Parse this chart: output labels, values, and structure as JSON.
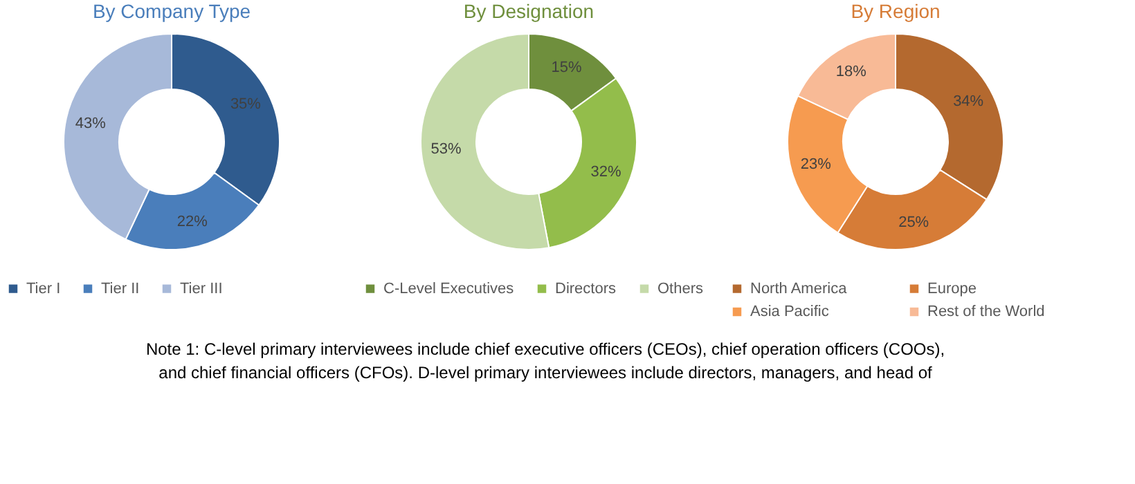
{
  "chart_data": [
    {
      "type": "donut",
      "title": "By Company Type",
      "categories": [
        "Tier I",
        "Tier II",
        "Tier III"
      ],
      "values": [
        35,
        22,
        43
      ],
      "colors": [
        "#2f5b8e",
        "#4a7ebb",
        "#a7b9d9"
      ],
      "value_labels": [
        "35%",
        "22%",
        "43%"
      ],
      "legend": "bottom",
      "annotations": [
        "Note 1: C-level primary interviewees include chief executive officers (CEOs), chief operation officers (COOs),",
        "and chief financial officers (CFOs). D-level primary interviewees include directors, managers, and head of"
      ]
    },
    {
      "type": "donut",
      "title": "By Designation",
      "categories": [
        "C-Level Executives",
        "Directors",
        "Others"
      ],
      "values": [
        15,
        32,
        53
      ],
      "colors": [
        "#6f8f3d",
        "#93bd4b",
        "#c5daa9"
      ],
      "value_labels": [
        "15%",
        "32%",
        "53%"
      ],
      "legend": "bottom"
    },
    {
      "type": "donut",
      "title": "By Region",
      "categories": [
        "North America",
        "Europe",
        "Asia Pacific",
        "Rest of the World"
      ],
      "values": [
        34,
        25,
        23,
        18
      ],
      "colors": [
        "#b4692f",
        "#d67c37",
        "#f69b50",
        "#f8ba96"
      ],
      "value_labels": [
        "34%",
        "25%",
        "23%",
        "18%"
      ],
      "legend": "bottom"
    }
  ]
}
